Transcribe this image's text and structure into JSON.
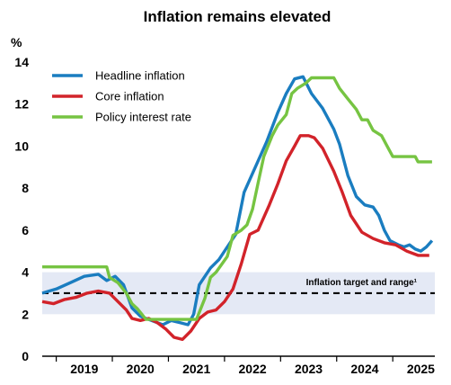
{
  "chart_data": {
    "type": "line",
    "title": "Inflation remains elevated",
    "y_unit": "%",
    "ylim": [
      0,
      14
    ],
    "y_ticks": [
      "0",
      "2",
      "4",
      "6",
      "8",
      "10",
      "12",
      "14"
    ],
    "xlim": [
      2018.75,
      2025.75
    ],
    "x_ticks": [
      {
        "label": "2019",
        "x": 2019.5
      },
      {
        "label": "2020",
        "x": 2020.5
      },
      {
        "label": "2021",
        "x": 2021.5
      },
      {
        "label": "2022",
        "x": 2022.5
      },
      {
        "label": "2023",
        "x": 2023.5
      },
      {
        "label": "2024",
        "x": 2024.5
      },
      {
        "label": "2025",
        "x": 2025.5
      }
    ],
    "legend_position": "top-left",
    "target_band": {
      "label": "Inflation target and range¹",
      "target": 3,
      "low": 2,
      "high": 4
    },
    "series": [
      {
        "name": "Headline inflation",
        "color": "#1a7dc0",
        "points": [
          [
            2018.75,
            3.0
          ],
          [
            2019.0,
            3.2
          ],
          [
            2019.25,
            3.5
          ],
          [
            2019.5,
            3.8
          ],
          [
            2019.75,
            3.9
          ],
          [
            2019.9,
            3.6
          ],
          [
            2020.05,
            3.8
          ],
          [
            2020.2,
            3.4
          ],
          [
            2020.35,
            2.3
          ],
          [
            2020.5,
            1.9
          ],
          [
            2020.7,
            1.7
          ],
          [
            2020.9,
            1.5
          ],
          [
            2021.05,
            1.7
          ],
          [
            2021.2,
            1.6
          ],
          [
            2021.35,
            1.5
          ],
          [
            2021.45,
            2.0
          ],
          [
            2021.55,
            3.4
          ],
          [
            2021.75,
            4.2
          ],
          [
            2021.9,
            4.6
          ],
          [
            2022.05,
            5.2
          ],
          [
            2022.2,
            5.8
          ],
          [
            2022.35,
            7.8
          ],
          [
            2022.55,
            9.0
          ],
          [
            2022.75,
            10.2
          ],
          [
            2022.95,
            11.6
          ],
          [
            2023.1,
            12.5
          ],
          [
            2023.25,
            13.2
          ],
          [
            2023.4,
            13.3
          ],
          [
            2023.55,
            12.5
          ],
          [
            2023.75,
            11.8
          ],
          [
            2023.95,
            10.8
          ],
          [
            2024.05,
            10.1
          ],
          [
            2024.2,
            8.6
          ],
          [
            2024.35,
            7.6
          ],
          [
            2024.5,
            7.2
          ],
          [
            2024.65,
            7.1
          ],
          [
            2024.75,
            6.7
          ],
          [
            2024.85,
            6.0
          ],
          [
            2024.95,
            5.5
          ],
          [
            2025.1,
            5.3
          ],
          [
            2025.2,
            5.2
          ],
          [
            2025.3,
            5.3
          ],
          [
            2025.4,
            5.1
          ],
          [
            2025.5,
            5.0
          ],
          [
            2025.6,
            5.2
          ],
          [
            2025.7,
            5.5
          ]
        ]
      },
      {
        "name": "Core inflation",
        "color": "#d2232a",
        "points": [
          [
            2018.75,
            2.6
          ],
          [
            2018.95,
            2.5
          ],
          [
            2019.15,
            2.7
          ],
          [
            2019.35,
            2.8
          ],
          [
            2019.55,
            3.0
          ],
          [
            2019.75,
            3.1
          ],
          [
            2019.95,
            3.0
          ],
          [
            2020.1,
            2.6
          ],
          [
            2020.25,
            2.2
          ],
          [
            2020.35,
            1.8
          ],
          [
            2020.5,
            1.7
          ],
          [
            2020.65,
            1.8
          ],
          [
            2020.8,
            1.6
          ],
          [
            2020.95,
            1.3
          ],
          [
            2021.1,
            0.9
          ],
          [
            2021.25,
            0.8
          ],
          [
            2021.4,
            1.2
          ],
          [
            2021.55,
            1.8
          ],
          [
            2021.7,
            2.1
          ],
          [
            2021.85,
            2.2
          ],
          [
            2022.0,
            2.6
          ],
          [
            2022.15,
            3.2
          ],
          [
            2022.3,
            4.4
          ],
          [
            2022.45,
            5.8
          ],
          [
            2022.6,
            6.0
          ],
          [
            2022.8,
            7.2
          ],
          [
            2022.95,
            8.2
          ],
          [
            2023.1,
            9.3
          ],
          [
            2023.25,
            10.0
          ],
          [
            2023.35,
            10.5
          ],
          [
            2023.5,
            10.5
          ],
          [
            2023.6,
            10.4
          ],
          [
            2023.75,
            9.9
          ],
          [
            2023.95,
            8.8
          ],
          [
            2024.1,
            7.8
          ],
          [
            2024.25,
            6.7
          ],
          [
            2024.45,
            5.9
          ],
          [
            2024.65,
            5.6
          ],
          [
            2024.85,
            5.4
          ],
          [
            2025.05,
            5.3
          ],
          [
            2025.25,
            5.0
          ],
          [
            2025.45,
            4.8
          ],
          [
            2025.65,
            4.8
          ]
        ]
      },
      {
        "name": "Policy interest rate",
        "color": "#76c442",
        "points": [
          [
            2018.75,
            4.25
          ],
          [
            2019.0,
            4.25
          ],
          [
            2019.25,
            4.25
          ],
          [
            2019.5,
            4.25
          ],
          [
            2019.75,
            4.25
          ],
          [
            2019.9,
            4.25
          ],
          [
            2019.95,
            3.75
          ],
          [
            2020.1,
            3.5
          ],
          [
            2020.25,
            3.0
          ],
          [
            2020.35,
            2.5
          ],
          [
            2020.45,
            2.25
          ],
          [
            2020.6,
            1.75
          ],
          [
            2020.9,
            1.75
          ],
          [
            2021.2,
            1.75
          ],
          [
            2021.45,
            1.75
          ],
          [
            2021.5,
            1.75
          ],
          [
            2021.65,
            2.75
          ],
          [
            2021.75,
            3.75
          ],
          [
            2021.85,
            4.0
          ],
          [
            2022.05,
            4.75
          ],
          [
            2022.15,
            5.75
          ],
          [
            2022.3,
            6.0
          ],
          [
            2022.4,
            6.25
          ],
          [
            2022.5,
            7.0
          ],
          [
            2022.6,
            8.25
          ],
          [
            2022.7,
            9.5
          ],
          [
            2022.85,
            10.5
          ],
          [
            2022.95,
            11.0
          ],
          [
            2023.1,
            11.5
          ],
          [
            2023.2,
            12.5
          ],
          [
            2023.3,
            12.75
          ],
          [
            2023.45,
            13.0
          ],
          [
            2023.55,
            13.25
          ],
          [
            2023.75,
            13.25
          ],
          [
            2023.95,
            13.25
          ],
          [
            2024.05,
            12.75
          ],
          [
            2024.2,
            12.25
          ],
          [
            2024.35,
            11.75
          ],
          [
            2024.45,
            11.25
          ],
          [
            2024.55,
            11.25
          ],
          [
            2024.65,
            10.75
          ],
          [
            2024.8,
            10.5
          ],
          [
            2024.9,
            10.0
          ],
          [
            2025.0,
            9.5
          ],
          [
            2025.4,
            9.5
          ],
          [
            2025.45,
            9.25
          ],
          [
            2025.7,
            9.25
          ]
        ]
      }
    ]
  }
}
